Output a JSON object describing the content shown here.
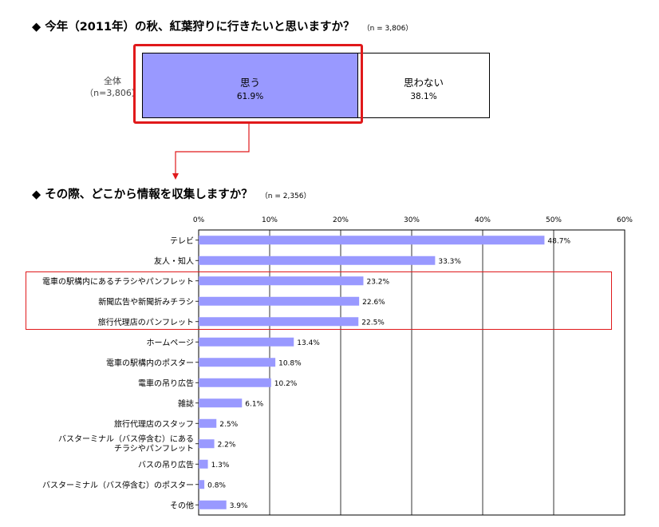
{
  "q1": {
    "title": "今年（2011年）の秋、紅葉狩りに行きたいと思いますか？",
    "n": "（n = 3,806）",
    "total_label": "全体",
    "total_n": "（n=3,806）",
    "segments": [
      {
        "label": "思う",
        "pct": "61.9%",
        "value": 61.9,
        "color": "#9999ff"
      },
      {
        "label": "思わない",
        "pct": "38.1%",
        "value": 38.1,
        "color": "#ffffff"
      }
    ]
  },
  "q2": {
    "title": "その際、どこから情報を収集しますか？",
    "n": "（n = 2,356）"
  },
  "colors": {
    "bar": "#9999ff",
    "highlight": "#e0191b"
  },
  "chart_data": {
    "type": "bar",
    "orientation": "horizontal",
    "xlim": [
      0,
      60
    ],
    "xticks": [
      "0%",
      "10%",
      "20%",
      "30%",
      "40%",
      "50%",
      "60%"
    ],
    "grid": true,
    "categories": [
      [
        "テレビ"
      ],
      [
        "友人・知人"
      ],
      [
        "電車の駅構内にあるチラシやパンフレット"
      ],
      [
        "新聞広告や新聞折みチラシ"
      ],
      [
        "旅行代理店のパンフレット"
      ],
      [
        "ホームページ"
      ],
      [
        "電車の駅構内のポスター"
      ],
      [
        "電車の吊り広告"
      ],
      [
        "雑誌"
      ],
      [
        "旅行代理店のスタッフ"
      ],
      [
        "バスターミナル（バス停含む）にある",
        "チラシやパンフレット"
      ],
      [
        "バスの吊り広告"
      ],
      [
        "バスターミナル（バス停含む）のポスター"
      ],
      [
        "その他"
      ]
    ],
    "values": [
      48.7,
      33.3,
      23.2,
      22.6,
      22.5,
      13.4,
      10.8,
      10.2,
      6.1,
      2.5,
      2.2,
      1.3,
      0.8,
      3.9
    ],
    "labels": [
      "48.7%",
      "33.3%",
      "23.2%",
      "22.6%",
      "22.5%",
      "13.4%",
      "10.8%",
      "10.2%",
      "6.1%",
      "2.5%",
      "2.2%",
      "1.3%",
      "0.8%",
      "3.9%"
    ]
  }
}
